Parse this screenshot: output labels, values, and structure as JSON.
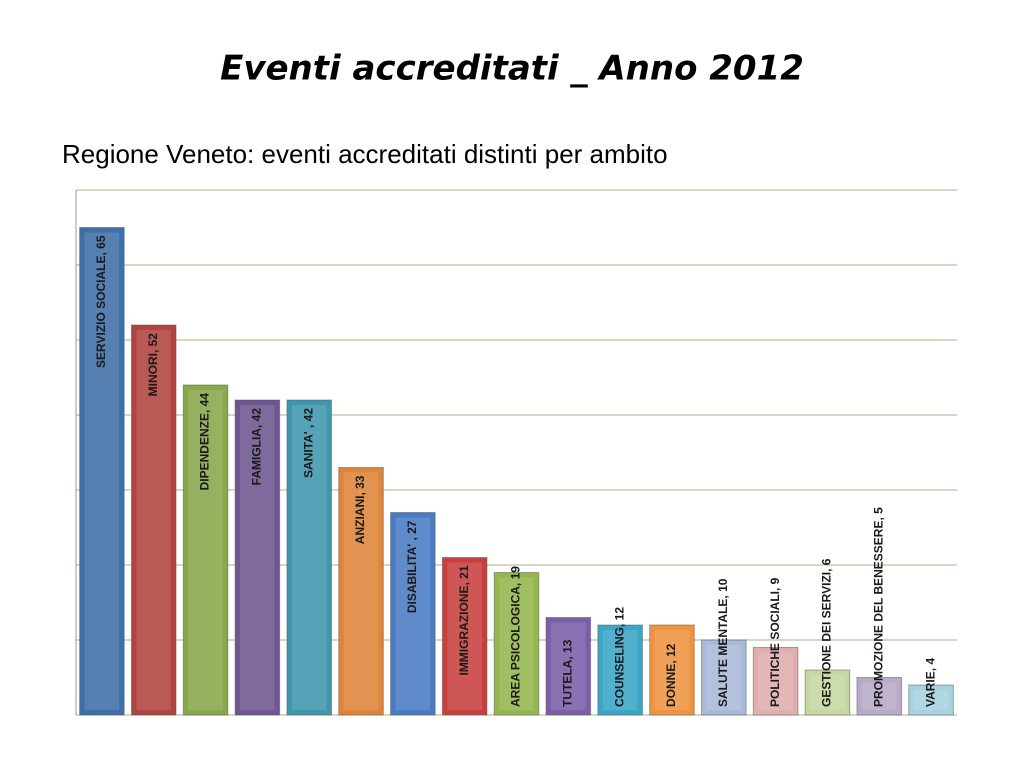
{
  "chart_data": {
    "type": "bar",
    "title": "Eventi accreditati _ Anno 2012",
    "subtitle": "Regione Veneto: eventi accreditati distinti per ambito",
    "values": [
      65,
      52,
      44,
      42,
      42,
      33,
      27,
      21,
      19,
      13,
      12,
      12,
      10,
      9,
      6,
      5,
      4
    ],
    "value_labels": [
      "SERVIZIO SOCIALE, 65",
      "MINORI, 52",
      "DIPENDENZE, 44",
      "FAMIGLIA, 42",
      "SANITA' , 42",
      "ANZIANI, 33",
      "DISABILITA' , 27",
      "IMMIGRAZIONE, 21",
      "AREA PSICOLOGICA, 19",
      "TUTELA, 13",
      "COUNSELING, 12",
      "DONNE, 12",
      "SALUTE MENTALE, 10",
      "POLITICHE SOCIALI, 9",
      "GESTIONE DEI SERVIZI, 6",
      "PROMOZIONE DEL BENESSERE, 5",
      "VARIE, 4"
    ],
    "colors": [
      "#3f6fa8",
      "#b04440",
      "#88a84a",
      "#6e5690",
      "#3f96ae",
      "#e0843a",
      "#4a7cc4",
      "#c8403e",
      "#95b64e",
      "#7d5ea8",
      "#3aa6c8",
      "#ee9440",
      "#a9b9d8",
      "#e1aeae",
      "#c5d8a2",
      "#b8aac8",
      "#a6d2e0"
    ],
    "ylim": [
      0,
      70
    ],
    "yticks": [
      0,
      10,
      20,
      30,
      40,
      50,
      60,
      70
    ],
    "grid": true
  }
}
